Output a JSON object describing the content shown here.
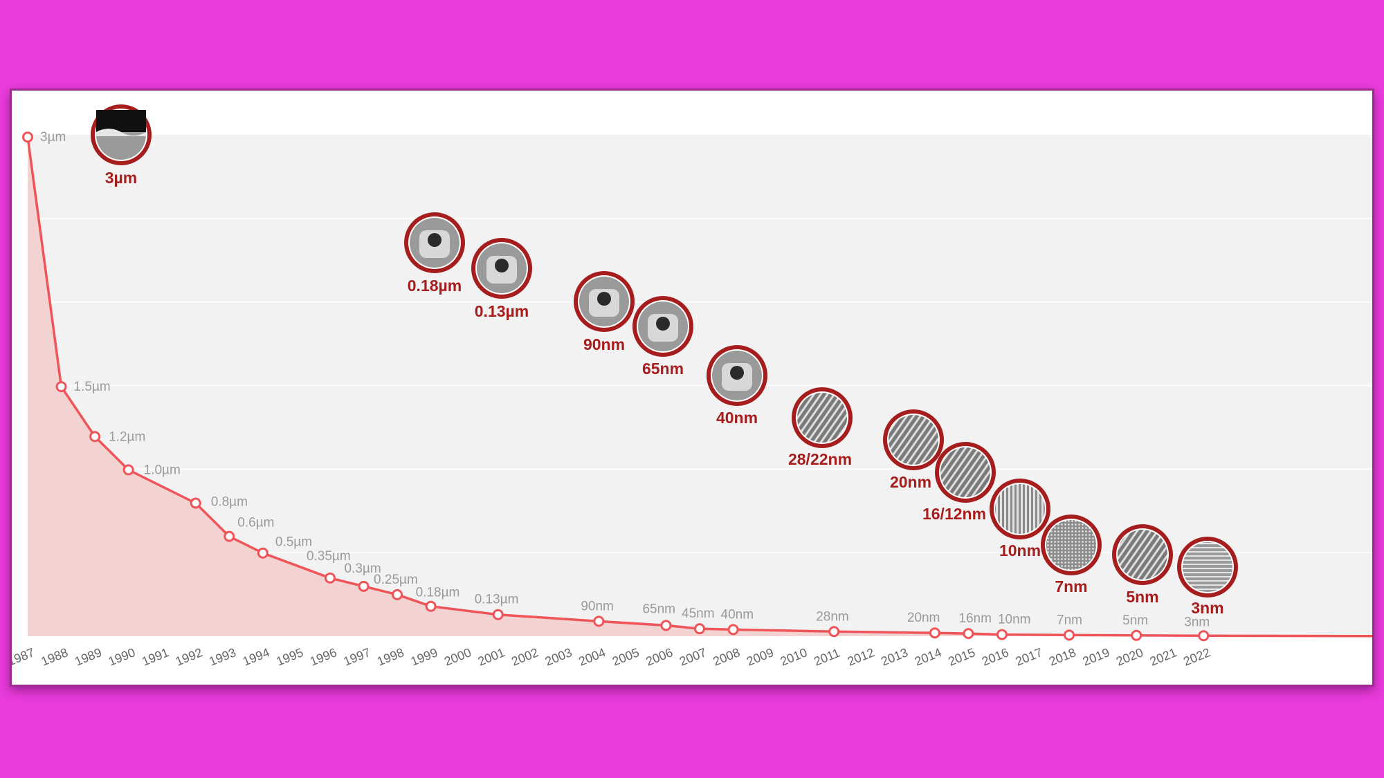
{
  "chart_data": {
    "type": "area",
    "x": [
      "1987",
      "1988",
      "1989",
      "1990",
      "1991",
      "1992",
      "1993",
      "1994",
      "1995",
      "1996",
      "1997",
      "1998",
      "1999",
      "2000",
      "2001",
      "2002",
      "2003",
      "2004",
      "2005",
      "2006",
      "2007",
      "2008",
      "2009",
      "2010",
      "2011",
      "2012",
      "2013",
      "2014",
      "2015",
      "2016",
      "2017",
      "2018",
      "2019",
      "2020",
      "2021",
      "2022"
    ],
    "series": [
      {
        "points": [
          {
            "x": 1987,
            "y": 3000,
            "label": "3µm"
          },
          {
            "x": 1988,
            "y": 1500,
            "label": "1.5µm"
          },
          {
            "x": 1989,
            "y": 1200,
            "label": "1.2µm"
          },
          {
            "x": 1990,
            "y": 1000,
            "label": "1.0µm"
          },
          {
            "x": 1992,
            "y": 800,
            "label": "0.8µm"
          },
          {
            "x": 1993,
            "y": 600,
            "label": "0.6µm"
          },
          {
            "x": 1994,
            "y": 500,
            "label": "0.5µm"
          },
          {
            "x": 1996,
            "y": 350,
            "label": "0.35µm"
          },
          {
            "x": 1997,
            "y": 300,
            "label": "0.3µm"
          },
          {
            "x": 1998,
            "y": 250,
            "label": "0.25µm"
          },
          {
            "x": 1999,
            "y": 180,
            "label": "0.18µm"
          },
          {
            "x": 2001,
            "y": 130,
            "label": "0.13µm"
          },
          {
            "x": 2004,
            "y": 90,
            "label": "90nm"
          },
          {
            "x": 2006,
            "y": 65,
            "label": "65nm"
          },
          {
            "x": 2007,
            "y": 45,
            "label": "45nm"
          },
          {
            "x": 2008,
            "y": 40,
            "label": "40nm"
          },
          {
            "x": 2011,
            "y": 28,
            "label": "28nm"
          },
          {
            "x": 2014,
            "y": 20,
            "label": "20nm"
          },
          {
            "x": 2015,
            "y": 16,
            "label": "16nm"
          },
          {
            "x": 2016,
            "y": 10,
            "label": "10nm"
          },
          {
            "x": 2018,
            "y": 7,
            "label": "7nm"
          },
          {
            "x": 2020,
            "y": 5,
            "label": "5nm"
          },
          {
            "x": 2022,
            "y": 3,
            "label": "3nm"
          }
        ]
      }
    ],
    "unit": "nm",
    "ylim": [
      0,
      3000
    ],
    "grid": true,
    "line_color": "#ef5558",
    "fill_color": "#f3d2d2",
    "badge_color": "#a61d1d",
    "badges": [
      {
        "label": "3µm",
        "image": "wafer-cross-section"
      },
      {
        "label": "0.18µm",
        "image": "transistor-micrograph"
      },
      {
        "label": "0.13µm",
        "image": "transistor-micrograph"
      },
      {
        "label": "90nm",
        "image": "transistor-micrograph"
      },
      {
        "label": "65nm",
        "image": "transistor-micrograph"
      },
      {
        "label": "40nm",
        "image": "transistor-micrograph"
      },
      {
        "label": "28/22nm",
        "image": "fin-array-micrograph"
      },
      {
        "label": "20nm",
        "image": "fin-array-micrograph"
      },
      {
        "label": "16/12nm",
        "image": "fin-array-micrograph"
      },
      {
        "label": "10nm",
        "image": "line-pattern-micrograph"
      },
      {
        "label": "7nm",
        "image": "dense-pattern-micrograph"
      },
      {
        "label": "5nm",
        "image": "fin-array-micrograph"
      },
      {
        "label": "3nm",
        "image": "line-pattern-micrograph"
      }
    ]
  }
}
